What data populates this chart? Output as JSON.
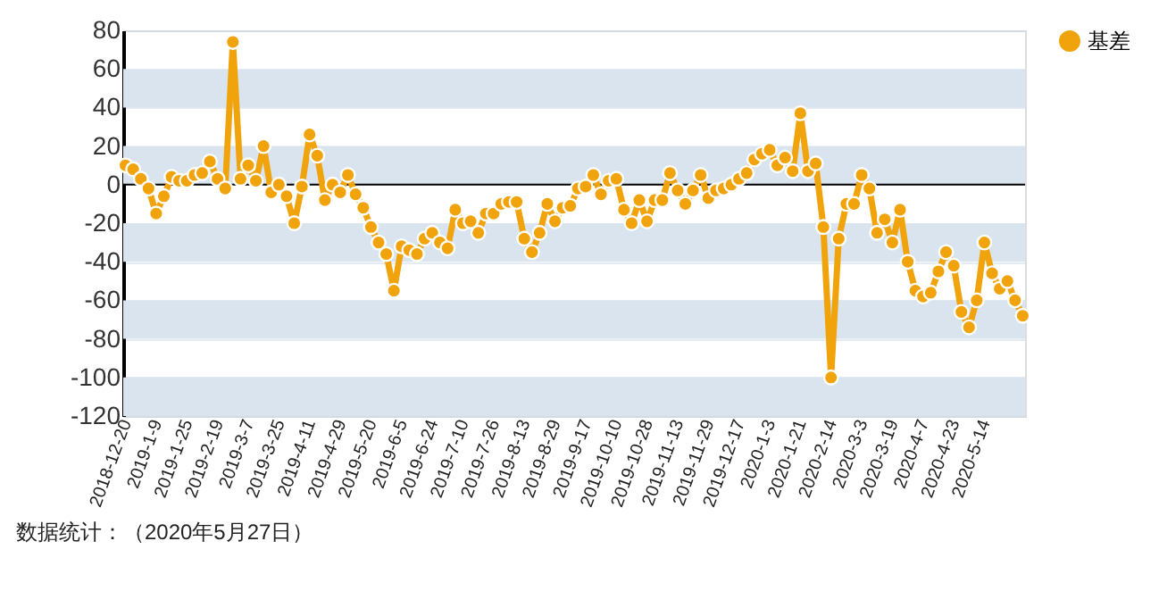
{
  "chart_data": {
    "type": "line",
    "categories": [
      "2018-12-20",
      null,
      null,
      null,
      "2019-1-9",
      null,
      null,
      null,
      "2019-1-25",
      null,
      null,
      null,
      "2019-2-19",
      null,
      null,
      null,
      "2019-3-7",
      null,
      null,
      null,
      "2019-3-25",
      null,
      null,
      null,
      "2019-4-11",
      null,
      null,
      null,
      "2019-4-29",
      null,
      null,
      null,
      "2019-5-20",
      null,
      null,
      null,
      "2019-6-5",
      null,
      null,
      null,
      "2019-6-24",
      null,
      null,
      null,
      "2019-7-10",
      null,
      null,
      null,
      "2019-7-26",
      null,
      null,
      null,
      "2019-8-13",
      null,
      null,
      null,
      "2019-8-29",
      null,
      null,
      null,
      "2019-9-17",
      null,
      null,
      null,
      "2019-10-10",
      null,
      null,
      null,
      "2019-10-28",
      null,
      null,
      null,
      "2019-11-13",
      null,
      null,
      null,
      "2019-11-29",
      null,
      null,
      null,
      "2019-12-17",
      null,
      null,
      null,
      "2020-1-3",
      null,
      null,
      null,
      "2020-1-21",
      null,
      null,
      null,
      "2020-2-14",
      null,
      null,
      null,
      "2020-3-3",
      null,
      null,
      null,
      "2020-3-19",
      null,
      null,
      null,
      "2020-4-7",
      null,
      null,
      null,
      "2020-4-23",
      null,
      null,
      null,
      "2020-5-14",
      null,
      null,
      null,
      null,
      null
    ],
    "series": [
      {
        "name": "基差",
        "color": "#f0a30a",
        "values": [
          10,
          8,
          3,
          -2,
          -15,
          -6,
          4,
          2,
          2,
          5,
          6,
          12,
          3,
          -2,
          74,
          3,
          10,
          2,
          20,
          -4,
          0,
          -6,
          -20,
          -1,
          26,
          15,
          -8,
          0,
          -4,
          5,
          -5,
          -12,
          -22,
          -30,
          -36,
          -55,
          -32,
          -34,
          -36,
          -28,
          -25,
          -30,
          -33,
          -13,
          -20,
          -19,
          -25,
          -15,
          -15,
          -10,
          -9,
          -9,
          -28,
          -35,
          -25,
          -10,
          -19,
          -12,
          -11,
          -2,
          -1,
          5,
          -5,
          2,
          3,
          -13,
          -20,
          -8,
          -19,
          -8,
          -8,
          6,
          -3,
          -10,
          -3,
          5,
          -7,
          -3,
          -2,
          0,
          3,
          6,
          13,
          16,
          18,
          10,
          14,
          7,
          37,
          7,
          11,
          -22,
          -100,
          -28,
          -10,
          -10,
          5,
          -2,
          -25,
          -18,
          -30,
          -13,
          -40,
          -55,
          -58,
          -56,
          -45,
          -35,
          -42,
          -66,
          -74,
          -60,
          -30,
          -46,
          -54,
          -50,
          -60,
          -68
        ]
      }
    ],
    "ylim": [
      -120,
      80
    ],
    "yticks": [
      -120,
      -100,
      -80,
      -60,
      -40,
      -20,
      0,
      20,
      40,
      60,
      80
    ],
    "grid": "y",
    "legend": "right",
    "marker": "circle",
    "line_style": "solid",
    "ref_lines": [
      {
        "axis": "y",
        "value": 0,
        "color": "#000000"
      }
    ],
    "annotations": [
      "数据统计：（2020年5月27日）"
    ]
  }
}
